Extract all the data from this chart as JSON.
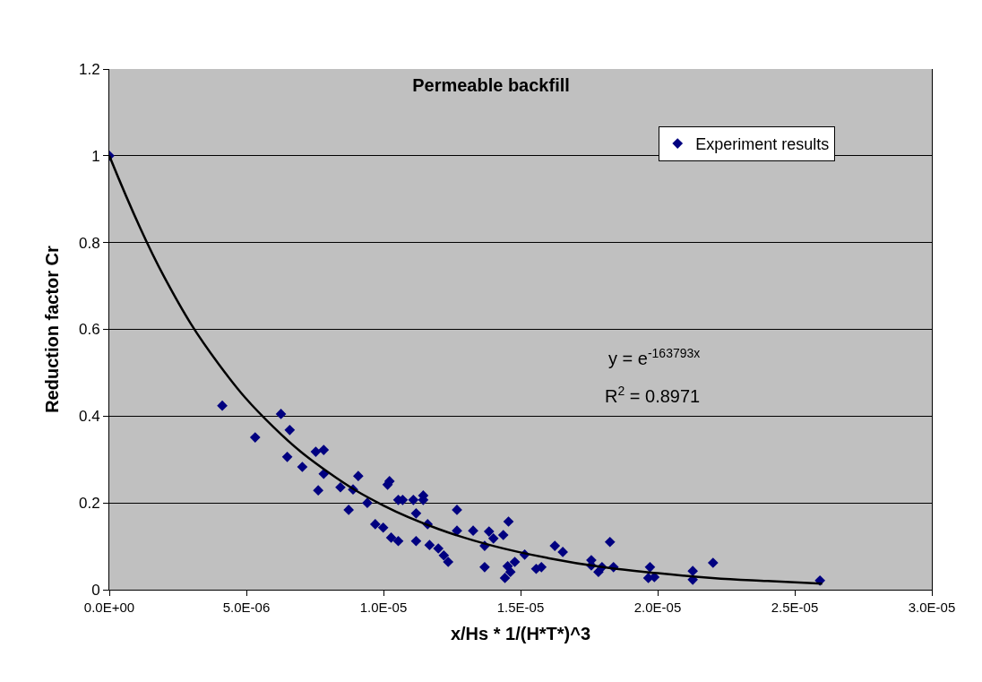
{
  "chart_data": {
    "type": "scatter",
    "title": "Permeable backfill",
    "xlabel": "x/Hs * 1/(H*T*)^3",
    "ylabel": "Reduction factor Cr",
    "annotations": [
      "y = e$^{-163793x}$",
      "R$^{2}$ = 0.8971"
    ],
    "series": [
      {
        "name": "Experiment results",
        "color": "#000080",
        "marker": "diamond",
        "x": [
          0,
          4.12e-06,
          5.32e-06,
          6.26e-06,
          6.58e-06,
          6.49e-06,
          7.04e-06,
          7.53e-06,
          7.82e-06,
          7.82e-06,
          7.62e-06,
          8.43e-06,
          8.89e-06,
          9.08e-06,
          1.022e-05,
          1.015e-05,
          9.41e-06,
          8.73e-06,
          9.7e-06,
          9.99e-06,
          1.028e-05,
          1.054e-05,
          1.054e-05,
          1.07e-05,
          1.109e-05,
          1.145e-05,
          1.145e-05,
          1.119e-05,
          1.161e-05,
          1.119e-05,
          1.168e-05,
          1.2e-05,
          1.22e-05,
          1.236e-05,
          1.268e-05,
          1.268e-05,
          1.327e-05,
          1.385e-05,
          1.401e-05,
          1.437e-05,
          1.456e-05,
          1.369e-05,
          1.369e-05,
          1.443e-05,
          1.453e-05,
          1.463e-05,
          1.479e-05,
          1.515e-05,
          1.557e-05,
          1.576e-05,
          1.625e-05,
          1.654e-05,
          1.758e-05,
          1.758e-05,
          1.784e-05,
          1.797e-05,
          1.839e-05,
          1.826e-05,
          1.972e-05,
          1.966e-05,
          1.988e-05,
          2.128e-05,
          2.128e-05,
          2.202e-05,
          2.592e-05
        ],
        "values": [
          1,
          0.424,
          0.351,
          0.405,
          0.368,
          0.306,
          0.283,
          0.318,
          0.322,
          0.267,
          0.229,
          0.236,
          0.231,
          0.262,
          0.25,
          0.242,
          0.2,
          0.184,
          0.151,
          0.143,
          0.12,
          0.112,
          0.207,
          0.207,
          0.207,
          0.217,
          0.207,
          0.176,
          0.151,
          0.112,
          0.103,
          0.095,
          0.079,
          0.064,
          0.184,
          0.136,
          0.136,
          0.134,
          0.118,
          0.126,
          0.157,
          0.101,
          0.052,
          0.027,
          0.054,
          0.041,
          0.064,
          0.081,
          0.048,
          0.052,
          0.101,
          0.087,
          0.068,
          0.056,
          0.041,
          0.052,
          0.052,
          0.11,
          0.052,
          0.027,
          0.029,
          0.043,
          0.023,
          0.062,
          0.021
        ]
      },
      {
        "type": "line",
        "color": "#000000",
        "marker": "none",
        "line_style": "solid",
        "x": [
          0,
          2e-06,
          4e-06,
          6e-06,
          8e-06,
          1e-05,
          1.2e-05,
          1.4e-05,
          1.6e-05,
          1.8e-05,
          2e-05,
          2.2e-05,
          2.4e-05,
          2.6e-05
        ],
        "values": [
          1,
          0.721,
          0.519,
          0.374,
          0.27,
          0.194,
          0.14,
          0.101,
          0.073,
          0.052,
          0.038,
          0.027,
          0.02,
          0.014
        ]
      }
    ],
    "xlim": [
      0,
      3e-05
    ],
    "xticks": [
      {
        "value": 0,
        "label": "0.0E+00"
      },
      {
        "value": 5e-06,
        "label": "5.0E-06"
      },
      {
        "value": 1e-05,
        "label": "1.0E-05"
      },
      {
        "value": 1.5e-05,
        "label": "1.5E-05"
      },
      {
        "value": 2e-05,
        "label": "2.0E-05"
      },
      {
        "value": 2.5e-05,
        "label": "2.5E-05"
      },
      {
        "value": 3e-05,
        "label": "3.0E-05"
      }
    ],
    "ylim": [
      0,
      1.2
    ],
    "yticks": [
      0,
      0.2,
      0.4,
      0.6,
      0.8,
      1,
      1.2
    ],
    "grid": "y",
    "legend": "top right"
  }
}
